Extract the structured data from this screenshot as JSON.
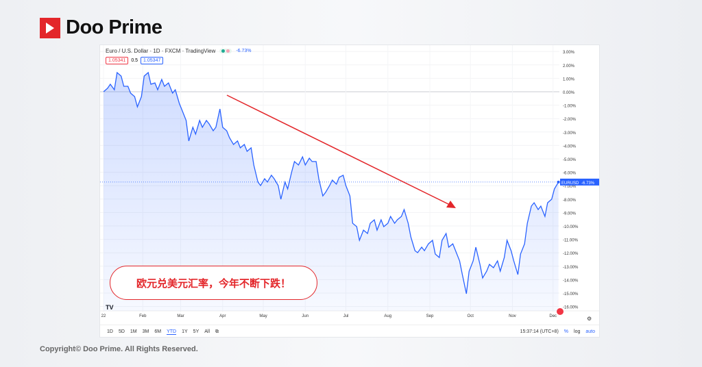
{
  "brand": {
    "name": "Doo Prime",
    "color": "#e3262a"
  },
  "chart_header": {
    "title": "Euro / U.S. Dollar · 1D · FXCM · TradingView",
    "change": "-6.73%",
    "bid": "1.05341",
    "spread": "0.5",
    "ask": "1.05347"
  },
  "annotation": "欧元兑美元汇率，今年不断下跌！",
  "timeframes": [
    "1D",
    "5D",
    "1M",
    "3M",
    "6M",
    "YTD",
    "1Y",
    "5Y",
    "All"
  ],
  "active_timeframe": "YTD",
  "status": {
    "time": "15:37:14 (UTC+8)",
    "percent": "%",
    "log": "log",
    "auto": "auto"
  },
  "copyright": "Copyright© Doo Prime. All Rights Reserved.",
  "chart_data": {
    "type": "area",
    "symbol": "EURUSD",
    "last_label": "-6.73%",
    "line_color": "#2962ff",
    "arrow_color": "#e3262a",
    "ylim": [
      -16.5,
      3.5
    ],
    "yticks": [
      "3.00%",
      "2.00%",
      "1.00%",
      "0.00%",
      "-1.00%",
      "-2.00%",
      "-3.00%",
      "-4.00%",
      "-5.00%",
      "-6.00%",
      "-7.00%",
      "-8.00%",
      "-9.00%",
      "-10.00%",
      "-11.00%",
      "-12.00%",
      "-13.00%",
      "-14.00%",
      "-15.00%",
      "-16.00%"
    ],
    "xticks": [
      "22",
      "Feb",
      "Mar",
      "Apr",
      "May",
      "Jun",
      "Jul",
      "Aug",
      "Sep",
      "Oct",
      "Nov",
      "Dec"
    ],
    "x": [
      "01-03",
      "01-06",
      "01-08",
      "01-11",
      "01-13",
      "01-16",
      "01-18",
      "01-21",
      "01-23",
      "01-26",
      "01-28",
      "01-31",
      "02-02",
      "02-05",
      "02-07",
      "02-10",
      "02-12",
      "02-15",
      "02-17",
      "02-20",
      "02-23",
      "02-25",
      "02-28",
      "03-02",
      "03-05",
      "03-07",
      "03-10",
      "03-12",
      "03-15",
      "03-17",
      "03-20",
      "03-22",
      "03-25",
      "03-27",
      "03-30",
      "04-01",
      "04-04",
      "04-06",
      "04-09",
      "04-12",
      "04-14",
      "04-17",
      "04-19",
      "04-22",
      "04-24",
      "04-27",
      "04-29",
      "05-02",
      "05-04",
      "05-07",
      "05-09",
      "05-12",
      "05-14",
      "05-17",
      "05-19",
      "05-22",
      "05-24",
      "05-27",
      "05-30",
      "06-01",
      "06-04",
      "06-06",
      "06-09",
      "06-11",
      "06-14",
      "06-16",
      "06-19",
      "06-21",
      "06-24",
      "06-26",
      "06-29",
      "07-01",
      "07-04",
      "07-06",
      "07-09",
      "07-11",
      "07-14",
      "07-17",
      "07-19",
      "07-22",
      "07-24",
      "07-27",
      "07-29",
      "08-01",
      "08-03",
      "08-06",
      "08-08",
      "08-11",
      "08-13",
      "08-16",
      "08-18",
      "08-21",
      "08-23",
      "08-26",
      "08-28",
      "08-31",
      "09-03",
      "09-05",
      "09-08",
      "09-10",
      "09-13",
      "09-15",
      "09-18",
      "09-20",
      "09-23",
      "09-25",
      "09-28",
      "09-30",
      "10-03",
      "10-05",
      "10-08",
      "10-10",
      "10-13",
      "10-15",
      "10-18",
      "10-21",
      "10-23",
      "10-26",
      "10-28",
      "10-31",
      "11-02",
      "11-05",
      "11-07",
      "11-10",
      "11-12",
      "11-15",
      "11-17",
      "11-20",
      "11-22",
      "11-25",
      "11-27",
      "11-30",
      "12-02",
      "12-05"
    ],
    "values": [
      0,
      0.26,
      0.56,
      0.15,
      1.43,
      1.17,
      0.41,
      0.41,
      -0.1,
      -0.36,
      -1.12,
      -0.36,
      1.17,
      1.43,
      0.56,
      0.66,
      0.15,
      0.92,
      0.41,
      0.66,
      -0.1,
      0.15,
      -0.87,
      -1.38,
      -2.14,
      -3.67,
      -2.65,
      -3.16,
      -2.14,
      -2.65,
      -2.14,
      -2.4,
      -2.91,
      -2.65,
      -1.28,
      -2.65,
      -2.91,
      -3.42,
      -3.93,
      -3.67,
      -4.18,
      -3.93,
      -4.44,
      -4.18,
      -5.46,
      -6.73,
      -6.99,
      -6.48,
      -6.73,
      -6.22,
      -6.48,
      -6.99,
      -8.01,
      -6.73,
      -7.24,
      -5.97,
      -5.2,
      -5.46,
      -4.85,
      -5.46,
      -4.95,
      -5.2,
      -5.2,
      -6.48,
      -7.76,
      -7.5,
      -6.99,
      -6.58,
      -6.89,
      -6.38,
      -6.22,
      -6.99,
      -7.76,
      -9.8,
      -10.05,
      -11.07,
      -10.31,
      -10.56,
      -9.8,
      -9.54,
      -10.31,
      -9.54,
      -10.05,
      -9.8,
      -9.29,
      -9.8,
      -9.54,
      -9.29,
      -8.78,
      -9.8,
      -10.82,
      -11.84,
      -11.99,
      -11.58,
      -11.84,
      -11.33,
      -11.07,
      -12.09,
      -12.35,
      -11.07,
      -10.56,
      -11.58,
      -11.33,
      -11.84,
      -12.6,
      -13.62,
      -15.05,
      -13.37,
      -12.6,
      -11.58,
      -12.86,
      -13.88,
      -13.37,
      -12.86,
      -13.11,
      -12.6,
      -13.37,
      -12.35,
      -11.07,
      -11.84,
      -12.6,
      -13.62,
      -12.09,
      -11.33,
      -9.8,
      -8.52,
      -8.27,
      -8.78,
      -8.52,
      -9.29,
      -8.27,
      -8.01,
      -7.24,
      -6.73
    ]
  }
}
